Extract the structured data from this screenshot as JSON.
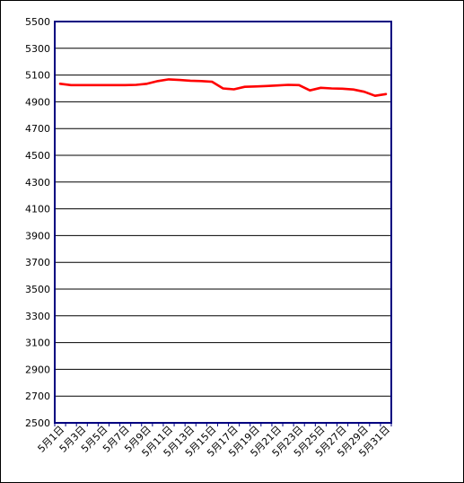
{
  "chart_data": {
    "type": "line",
    "title": "",
    "xlabel": "",
    "ylabel": "",
    "ylim": [
      2500,
      5500
    ],
    "yticks": [
      2500,
      2700,
      2900,
      3100,
      3300,
      3500,
      3700,
      3900,
      4100,
      4300,
      4500,
      4700,
      4900,
      5100,
      5300,
      5500
    ],
    "grid": true,
    "legend": "none",
    "x": [
      "5月1日",
      "5月2日",
      "5月3日",
      "5月4日",
      "5月5日",
      "5月6日",
      "5月7日",
      "5月8日",
      "5月9日",
      "5月10日",
      "5月11日",
      "5月12日",
      "5月13日",
      "5月14日",
      "5月15日",
      "5月16日",
      "5月17日",
      "5月18日",
      "5月19日",
      "5月20日",
      "5月21日",
      "5月22日",
      "5月23日",
      "5月24日",
      "5月25日",
      "5月26日",
      "5月27日",
      "5月28日",
      "5月29日",
      "5月30日",
      "5月31日"
    ],
    "xtick_labels": [
      "5月1日",
      "5月3日",
      "5月5日",
      "5月7日",
      "5月9日",
      "5月11日",
      "5月13日",
      "5月15日",
      "5月17日",
      "5月19日",
      "5月21日",
      "5月23日",
      "5月25日",
      "5月27日",
      "5月29日",
      "5月31日"
    ],
    "series": [
      {
        "values": [
          5035,
          5025,
          5025,
          5025,
          5025,
          5025,
          5025,
          5027,
          5035,
          5055,
          5068,
          5063,
          5058,
          5055,
          5050,
          5000,
          4993,
          5012,
          5015,
          5018,
          5022,
          5027,
          5025,
          4985,
          5005,
          5000,
          4998,
          4992,
          4975,
          4945,
          4958
        ],
        "color": "#ff0000"
      }
    ],
    "colors": {
      "axis": "#000080",
      "grid": "#000000",
      "plot_bg": "#ffffff"
    }
  }
}
